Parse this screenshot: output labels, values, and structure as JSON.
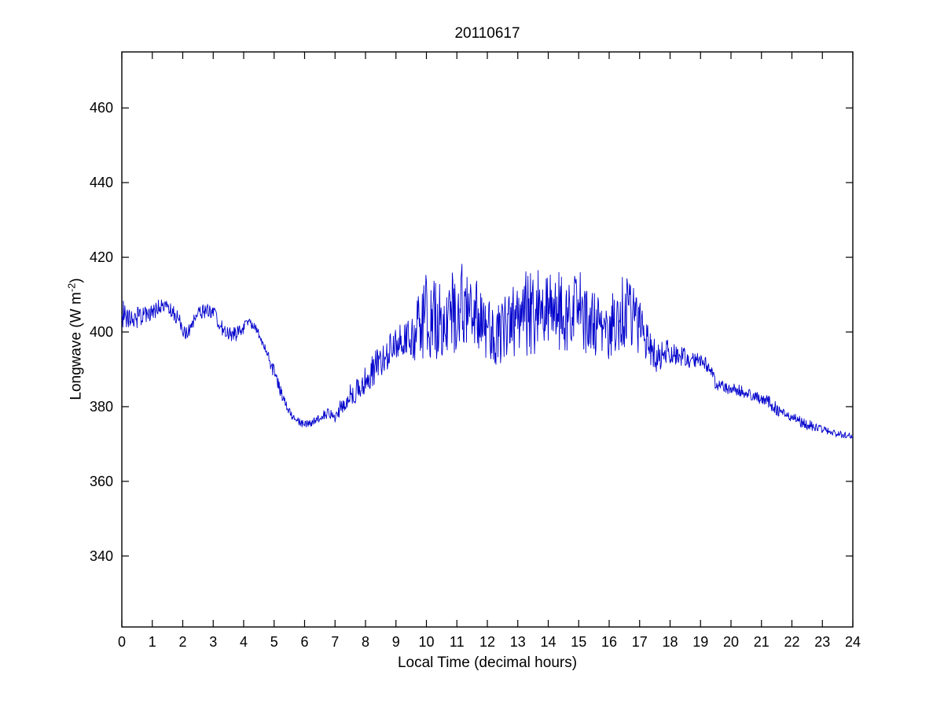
{
  "page": {
    "background": "#ffffff"
  },
  "chart_data": {
    "type": "line",
    "title": "20110617",
    "xlabel": "Local Time (decimal hours)",
    "ylabel": {
      "prefix": "Longwave (W m",
      "superscript": "-2",
      "suffix": ")"
    },
    "xlim": [
      0,
      24
    ],
    "ylim": [
      321,
      475
    ],
    "xticks": [
      0,
      1,
      2,
      3,
      4,
      5,
      6,
      7,
      8,
      9,
      10,
      11,
      12,
      13,
      14,
      15,
      16,
      17,
      18,
      19,
      20,
      21,
      22,
      23,
      24
    ],
    "yticks": [
      340,
      360,
      380,
      400,
      420,
      440,
      460
    ],
    "grid": false,
    "legend_position": "none",
    "line_color": "#0000cc",
    "axis_color": "#000000",
    "noise_seed": 20110617,
    "sample_minutes": 1,
    "series": [
      {
        "name": "longwave_wm2",
        "keypoints": [
          [
            0.0,
            405,
            4.0
          ],
          [
            0.3,
            403,
            3.0
          ],
          [
            0.7,
            405,
            3.0
          ],
          [
            1.0,
            405,
            3.0
          ],
          [
            1.3,
            407,
            2.0
          ],
          [
            1.6,
            406,
            2.0
          ],
          [
            1.9,
            403,
            2.0
          ],
          [
            2.1,
            399,
            2.0
          ],
          [
            2.4,
            404,
            2.0
          ],
          [
            2.8,
            406,
            2.0
          ],
          [
            3.0,
            405,
            2.0
          ],
          [
            3.3,
            401,
            2.0
          ],
          [
            3.6,
            399,
            2.0
          ],
          [
            3.9,
            400,
            2.0
          ],
          [
            4.1,
            403,
            1.5
          ],
          [
            4.4,
            401,
            1.0
          ],
          [
            4.7,
            396,
            1.5
          ],
          [
            5.0,
            389,
            2.0
          ],
          [
            5.3,
            382,
            1.5
          ],
          [
            5.6,
            377,
            1.0
          ],
          [
            5.9,
            375.5,
            1.0
          ],
          [
            6.2,
            375.5,
            1.0
          ],
          [
            6.5,
            377,
            1.2
          ],
          [
            6.8,
            378.5,
            1.5
          ],
          [
            7.0,
            377,
            1.5
          ],
          [
            7.2,
            380,
            2.5
          ],
          [
            7.5,
            383,
            3.0
          ],
          [
            7.8,
            385,
            3.5
          ],
          [
            8.0,
            387,
            4.0
          ],
          [
            8.3,
            391,
            5.0
          ],
          [
            8.6,
            393,
            4.0
          ],
          [
            9.0,
            397,
            5.0
          ],
          [
            9.3,
            398,
            5.0
          ],
          [
            9.6,
            399,
            7.0
          ],
          [
            9.9,
            404,
            11.0
          ],
          [
            10.2,
            406,
            13.0
          ],
          [
            10.5,
            402,
            10.0
          ],
          [
            10.8,
            404,
            11.0
          ],
          [
            11.1,
            408,
            12.0
          ],
          [
            11.4,
            406,
            11.0
          ],
          [
            11.7,
            403,
            10.0
          ],
          [
            12.0,
            401,
            9.0
          ],
          [
            12.3,
            399,
            8.0
          ],
          [
            12.6,
            401,
            9.0
          ],
          [
            12.9,
            403,
            10.0
          ],
          [
            13.2,
            405,
            11.0
          ],
          [
            13.5,
            407,
            14.0
          ],
          [
            13.8,
            404,
            11.0
          ],
          [
            14.1,
            406,
            11.0
          ],
          [
            14.4,
            405,
            11.0
          ],
          [
            14.7,
            403,
            10.0
          ],
          [
            15.0,
            406,
            11.0
          ],
          [
            15.3,
            403,
            10.0
          ],
          [
            15.6,
            401,
            9.0
          ],
          [
            15.9,
            400,
            8.0
          ],
          [
            16.2,
            403,
            9.0
          ],
          [
            16.5,
            406,
            10.0
          ],
          [
            16.8,
            404,
            9.0
          ],
          [
            17.0,
            403,
            9.0
          ],
          [
            17.3,
            396,
            5.0
          ],
          [
            17.6,
            393,
            4.0
          ],
          [
            17.9,
            395,
            3.0
          ],
          [
            18.2,
            394,
            3.0
          ],
          [
            18.6,
            393,
            2.5
          ],
          [
            19.0,
            392,
            2.0
          ],
          [
            19.3,
            391,
            2.0
          ],
          [
            19.5,
            386,
            2.0
          ],
          [
            19.8,
            385,
            1.5
          ],
          [
            20.2,
            384.5,
            1.5
          ],
          [
            20.6,
            383.5,
            1.5
          ],
          [
            21.0,
            382,
            1.5
          ],
          [
            21.3,
            381,
            2.0
          ],
          [
            21.6,
            378.5,
            1.5
          ],
          [
            22.0,
            377,
            1.5
          ],
          [
            22.4,
            375.5,
            1.5
          ],
          [
            22.8,
            374.5,
            1.2
          ],
          [
            23.2,
            373.5,
            1.0
          ],
          [
            23.6,
            372.5,
            1.0
          ],
          [
            24.0,
            372,
            0.8
          ]
        ]
      }
    ]
  }
}
